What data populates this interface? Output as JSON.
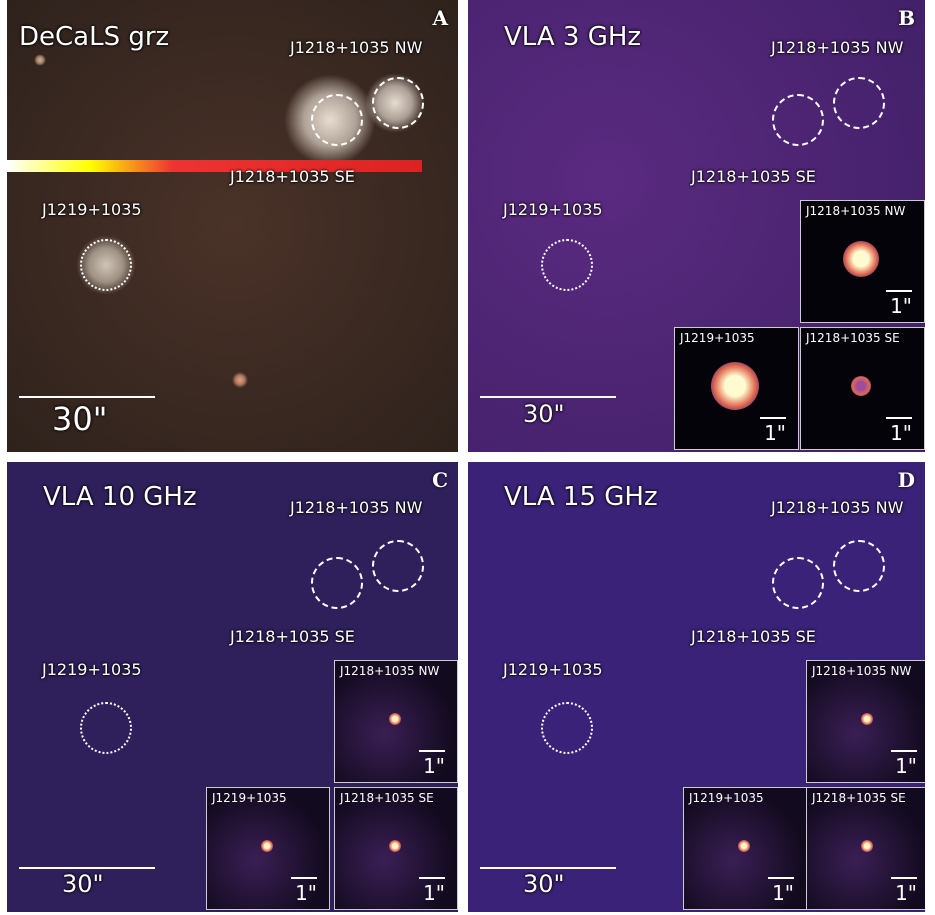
{
  "panels": [
    {
      "id": "A",
      "letter": "A",
      "title": "DeCaLS grz",
      "scale": "30\"",
      "bg": "#3b2a24",
      "labels": {
        "nw": "J1218+1035 NW",
        "se": "J1218+1035 SE",
        "j1219": "J1219+1035"
      }
    },
    {
      "id": "B",
      "letter": "B",
      "title": "VLA 3 GHz",
      "scale": "30\"",
      "bg": "#4b2472",
      "labels": {
        "nw": "J1218+1035 NW",
        "se": "J1218+1035 SE",
        "j1219": "J1219+1035"
      },
      "insets": [
        {
          "label": "J1218+1035 NW",
          "scale": "1\""
        },
        {
          "label": "J1219+1035",
          "scale": "1\""
        },
        {
          "label": "J1218+1035 SE",
          "scale": "1\""
        }
      ]
    },
    {
      "id": "C",
      "letter": "C",
      "title": "VLA 10 GHz",
      "scale": "30\"",
      "bg": "#2f205c",
      "labels": {
        "nw": "J1218+1035 NW",
        "se": "J1218+1035 SE",
        "j1219": "J1219+1035"
      },
      "insets": [
        {
          "label": "J1218+1035 NW",
          "scale": "1\""
        },
        {
          "label": "J1219+1035",
          "scale": "1\""
        },
        {
          "label": "J1218+1035 SE",
          "scale": "1\""
        }
      ]
    },
    {
      "id": "D",
      "letter": "D",
      "title": "VLA 15 GHz",
      "scale": "30\"",
      "bg": "#3a2278",
      "labels": {
        "nw": "J1218+1035 NW",
        "se": "J1218+1035 SE",
        "j1219": "J1219+1035"
      },
      "insets": [
        {
          "label": "J1218+1035 NW",
          "scale": "1\""
        },
        {
          "label": "J1219+1035",
          "scale": "1\""
        },
        {
          "label": "J1218+1035 SE",
          "scale": "1\""
        }
      ]
    }
  ]
}
